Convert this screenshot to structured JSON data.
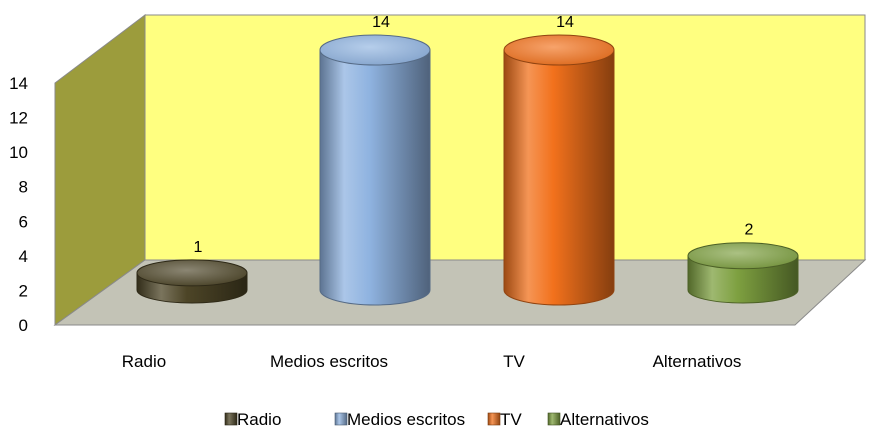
{
  "chart_data": {
    "type": "bar",
    "categories": [
      "Radio",
      "Medios escritos",
      "TV",
      "Alternativos"
    ],
    "values": [
      1,
      14,
      14,
      2
    ],
    "data_labels": [
      "1",
      "14",
      "14",
      "2"
    ],
    "ylim": [
      0,
      14
    ],
    "yticks": [
      0,
      2,
      4,
      6,
      8,
      10,
      12,
      14
    ],
    "grid": false,
    "legend_position": "bottom",
    "legend": [
      "Radio",
      "Medios escritos",
      "TV",
      "Alternativos"
    ],
    "colors": {
      "Radio": "#4d4527",
      "Medios escritos": "#8fb3e0",
      "TV": "#f2711c",
      "Alternativos": "#7ea040",
      "back_wall": "#ffff80",
      "side_wall": "#9c9c3c",
      "floor": "#c3c3b6"
    },
    "style": "3d-cylinder"
  }
}
